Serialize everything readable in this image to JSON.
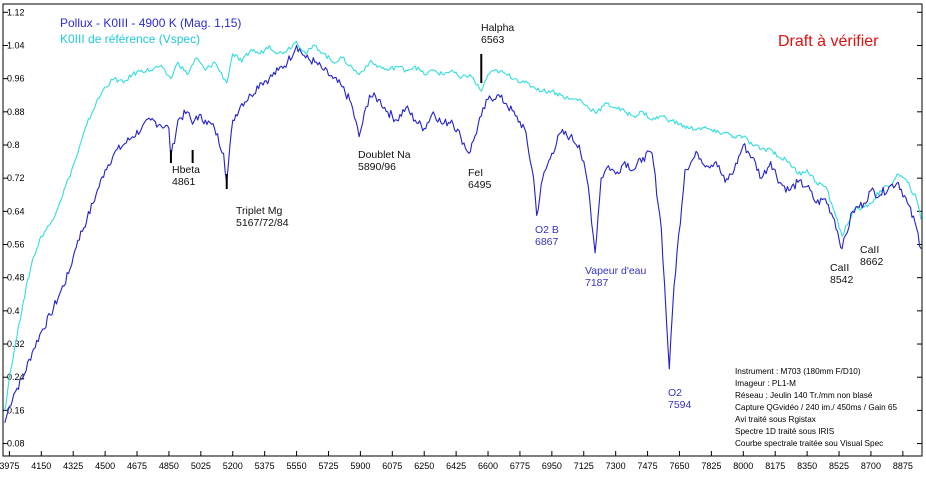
{
  "chart_data": {
    "type": "line",
    "title": "",
    "xlabel": "",
    "ylabel": "",
    "xlim": [
      3940,
      8980
    ],
    "ylim": [
      0.05,
      1.14
    ],
    "x_ticks": [
      3975,
      4150,
      4325,
      4500,
      4675,
      4850,
      5025,
      5200,
      5375,
      5550,
      5725,
      5900,
      6075,
      6250,
      6425,
      6600,
      6775,
      6950,
      7125,
      7300,
      7475,
      7650,
      7825,
      8000,
      8175,
      8350,
      8525,
      8700,
      8875
    ],
    "y_ticks": [
      0.08,
      0.16,
      0.24,
      0.32,
      0.4,
      0.48,
      0.56,
      0.64,
      0.72,
      0.8,
      0.88,
      0.96,
      1.04,
      1.12
    ],
    "series": [
      {
        "name": "Pollux - K0III - 4900 K  (Mag. 1,15)",
        "color": "#2222cc",
        "x": [
          3950,
          3975,
          4000,
          4050,
          4100,
          4150,
          4200,
          4250,
          4300,
          4325,
          4350,
          4400,
          4450,
          4500,
          4550,
          4600,
          4650,
          4700,
          4750,
          4800,
          4850,
          4861,
          4900,
          4950,
          4980,
          5000,
          5050,
          5100,
          5150,
          5167,
          5200,
          5250,
          5300,
          5350,
          5400,
          5450,
          5500,
          5550,
          5600,
          5650,
          5700,
          5750,
          5800,
          5850,
          5893,
          5950,
          6000,
          6050,
          6100,
          6150,
          6200,
          6250,
          6300,
          6350,
          6400,
          6450,
          6495,
          6520,
          6563,
          6600,
          6650,
          6700,
          6750,
          6800,
          6850,
          6867,
          6900,
          6950,
          7000,
          7050,
          7100,
          7150,
          7187,
          7220,
          7260,
          7300,
          7350,
          7400,
          7450,
          7500,
          7550,
          7594,
          7620,
          7680,
          7750,
          7800,
          7850,
          7900,
          7950,
          8000,
          8050,
          8100,
          8150,
          8200,
          8250,
          8300,
          8350,
          8400,
          8450,
          8500,
          8542,
          8600,
          8662,
          8700,
          8750,
          8800,
          8850,
          8900,
          8950,
          8975
        ],
        "values": [
          0.13,
          0.17,
          0.2,
          0.24,
          0.3,
          0.35,
          0.39,
          0.44,
          0.49,
          0.53,
          0.57,
          0.62,
          0.68,
          0.74,
          0.78,
          0.8,
          0.82,
          0.84,
          0.86,
          0.85,
          0.84,
          0.77,
          0.86,
          0.88,
          0.85,
          0.87,
          0.86,
          0.84,
          0.78,
          0.71,
          0.86,
          0.9,
          0.92,
          0.95,
          0.96,
          0.98,
          1.0,
          1.04,
          1.01,
          1.0,
          0.98,
          0.96,
          0.94,
          0.9,
          0.82,
          0.92,
          0.91,
          0.88,
          0.86,
          0.89,
          0.86,
          0.84,
          0.88,
          0.85,
          0.86,
          0.82,
          0.78,
          0.81,
          0.87,
          0.91,
          0.92,
          0.9,
          0.87,
          0.84,
          0.72,
          0.63,
          0.72,
          0.78,
          0.83,
          0.82,
          0.8,
          0.7,
          0.54,
          0.72,
          0.75,
          0.73,
          0.76,
          0.74,
          0.77,
          0.78,
          0.6,
          0.26,
          0.46,
          0.74,
          0.78,
          0.75,
          0.76,
          0.71,
          0.74,
          0.8,
          0.77,
          0.72,
          0.76,
          0.71,
          0.69,
          0.71,
          0.7,
          0.66,
          0.67,
          0.62,
          0.55,
          0.64,
          0.66,
          0.69,
          0.68,
          0.7,
          0.71,
          0.66,
          0.6,
          0.55
        ]
      },
      {
        "name": "K0III de référence (Vspec)",
        "color": "#33dddd",
        "x": [
          3950,
          3975,
          4000,
          4050,
          4100,
          4150,
          4200,
          4250,
          4300,
          4350,
          4400,
          4450,
          4500,
          4550,
          4600,
          4650,
          4700,
          4750,
          4800,
          4861,
          4900,
          4950,
          5000,
          5050,
          5100,
          5167,
          5200,
          5250,
          5300,
          5350,
          5400,
          5450,
          5500,
          5550,
          5600,
          5650,
          5700,
          5750,
          5800,
          5893,
          5950,
          6000,
          6050,
          6100,
          6150,
          6200,
          6250,
          6300,
          6350,
          6400,
          6450,
          6500,
          6563,
          6600,
          6650,
          6700,
          6750,
          6800,
          6850,
          6900,
          6950,
          7000,
          7050,
          7100,
          7150,
          7200,
          7250,
          7300,
          7350,
          7400,
          7450,
          7500,
          7550,
          7600,
          7650,
          7700,
          7750,
          7800,
          7850,
          7900,
          7950,
          8000,
          8050,
          8100,
          8150,
          8200,
          8250,
          8300,
          8350,
          8400,
          8450,
          8500,
          8542,
          8600,
          8662,
          8700,
          8750,
          8800,
          8850,
          8900,
          8950,
          8975
        ],
        "values": [
          0.16,
          0.24,
          0.3,
          0.42,
          0.52,
          0.58,
          0.61,
          0.66,
          0.72,
          0.78,
          0.85,
          0.9,
          0.94,
          0.96,
          0.95,
          0.97,
          0.98,
          0.98,
          0.99,
          0.96,
          1.0,
          0.97,
          1.01,
          0.98,
          1.0,
          0.95,
          1.02,
          1.0,
          1.03,
          1.02,
          1.04,
          1.02,
          1.03,
          1.05,
          1.02,
          1.04,
          1.02,
          1.0,
          1.01,
          0.97,
          1.0,
          0.99,
          0.98,
          0.99,
          0.98,
          0.99,
          0.97,
          0.98,
          0.97,
          0.98,
          0.96,
          0.97,
          0.93,
          0.97,
          0.98,
          0.97,
          0.96,
          0.95,
          0.94,
          0.93,
          0.93,
          0.92,
          0.91,
          0.91,
          0.89,
          0.88,
          0.9,
          0.89,
          0.88,
          0.87,
          0.88,
          0.86,
          0.87,
          0.86,
          0.85,
          0.84,
          0.84,
          0.84,
          0.83,
          0.83,
          0.82,
          0.82,
          0.8,
          0.79,
          0.79,
          0.77,
          0.76,
          0.73,
          0.74,
          0.71,
          0.7,
          0.64,
          0.58,
          0.64,
          0.65,
          0.66,
          0.69,
          0.7,
          0.73,
          0.71,
          0.67,
          0.62
        ]
      }
    ],
    "annotations": [
      {
        "name": "hbeta",
        "label": "Hbeta",
        "value": "4861",
        "x": 4861
      },
      {
        "name": "tick-4980",
        "label": "",
        "value": "",
        "x": 4980
      },
      {
        "name": "triplet-mg",
        "label": "Triplet Mg",
        "value": "5167/72/84",
        "x": 5167
      },
      {
        "name": "doublet-na",
        "label": "Doublet Na",
        "value": "5890/96",
        "x": 5893
      },
      {
        "name": "halpha",
        "label": "Halpha",
        "value": "6563",
        "x": 6563
      },
      {
        "name": "fei",
        "label": "FeI",
        "value": "6495",
        "x": 6495
      },
      {
        "name": "o2b",
        "label": "O2 B",
        "value": "6867",
        "x": 6867
      },
      {
        "name": "vapeur",
        "label": "Vapeur d'eau",
        "value": "7187",
        "x": 7187
      },
      {
        "name": "o2",
        "label": "O2",
        "value": "7594",
        "x": 7594
      },
      {
        "name": "caii-8542",
        "label": "CaII",
        "value": "8542",
        "x": 8542
      },
      {
        "name": "caii-8662",
        "label": "CaII",
        "value": "8662",
        "x": 8662
      }
    ],
    "legend": [
      "Pollux - K0III - 4900 K  (Mag. 1,15)",
      "K0III de référence (Vspec)"
    ],
    "legend_position": "top-left"
  },
  "draft_note": "Draft à vérifier",
  "instrument_info": [
    "Instrument : M703 (180mm F/D10)",
    "Imageur : PL1-M",
    "Réseau : Jeulin 140 Tr./mm non blasé",
    "Capture QGvidéo / 240 im./ 450ms / Gain 65",
    "Avi traité sous Rgistax",
    "Spectre 1D traité sous IRIS",
    "Courbe spectrale traitée sou Visual Spec"
  ]
}
